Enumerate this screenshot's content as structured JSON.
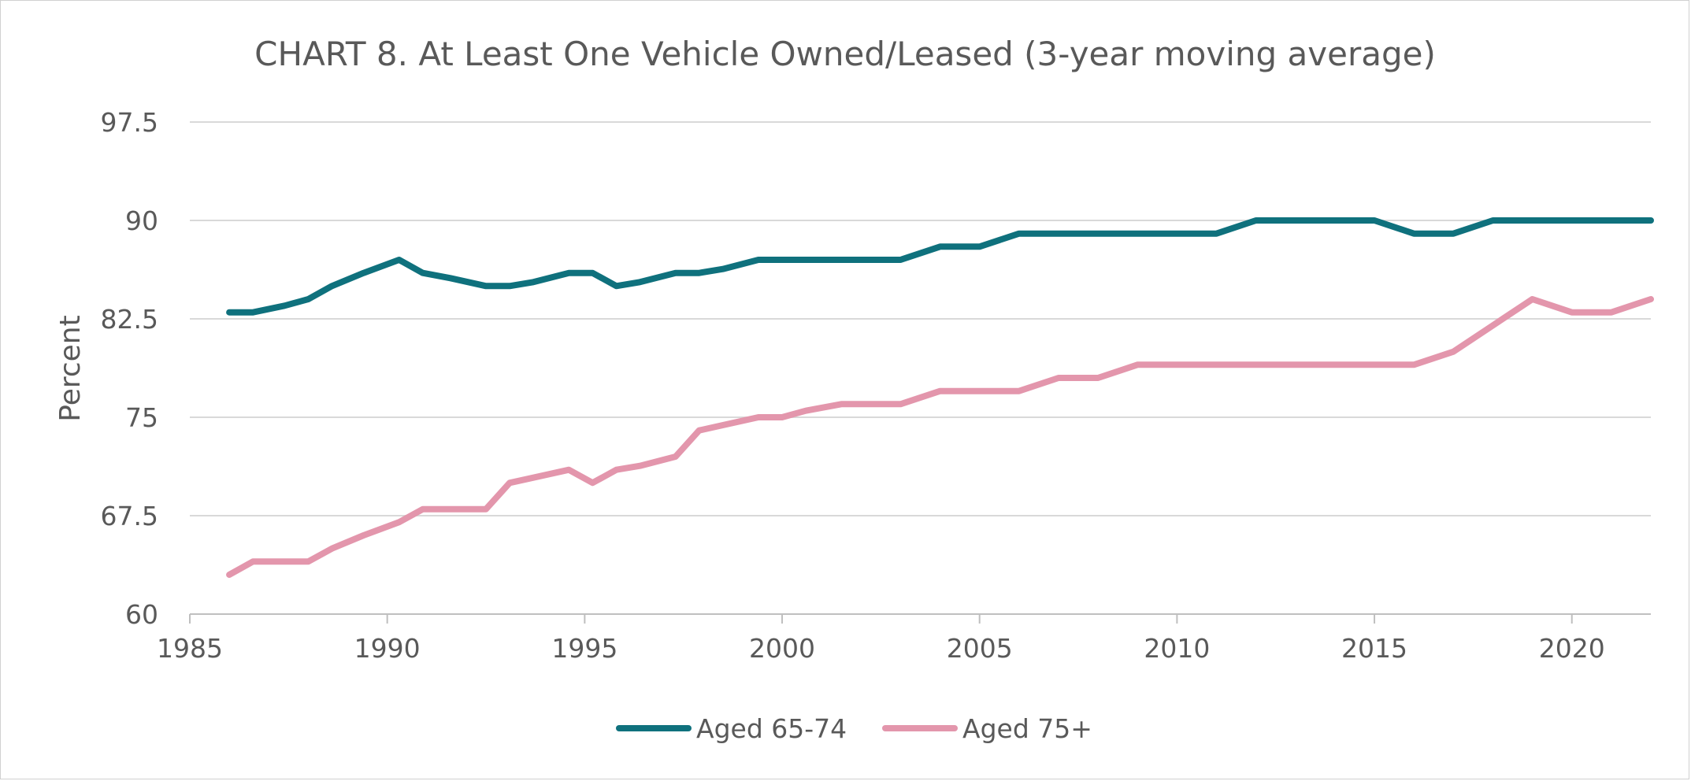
{
  "chart_data": {
    "type": "line",
    "title": "CHART 8. At Least One Vehicle Owned/Leased (3-year moving average)",
    "xlabel": "",
    "ylabel": "Percent",
    "xlim": [
      1985,
      2022
    ],
    "ylim": [
      60,
      97.5
    ],
    "xticks": [
      "1985",
      "1990",
      "1995",
      "2000",
      "2005",
      "2010",
      "2015",
      "2020"
    ],
    "yticks": [
      "60",
      "67.5",
      "75",
      "82.5",
      "90",
      "97.5"
    ],
    "grid": true,
    "legend_position": "bottom",
    "series": [
      {
        "name": "Aged 65-74",
        "color": "#0f717d",
        "x": [
          1986,
          1986.6,
          1987.4,
          1988,
          1988.6,
          1989.4,
          1990.3,
          1990.9,
          1991.6,
          1992.5,
          1993.1,
          1993.7,
          1994.6,
          1995.2,
          1995.8,
          1996.4,
          1997.3,
          1997.9,
          1998.5,
          1999.4,
          2000,
          2000.6,
          2001.5,
          2002.1,
          2003,
          2004,
          2005,
          2006,
          2007,
          2008,
          2009,
          2010,
          2011,
          2012,
          2013,
          2014,
          2015,
          2016,
          2017,
          2018,
          2019,
          2020,
          2021,
          2022
        ],
        "y": [
          83,
          83,
          83.5,
          84,
          85,
          86,
          87,
          86,
          85.6,
          85,
          85,
          85.3,
          86,
          86,
          85,
          85.3,
          86,
          86,
          86.3,
          87,
          87,
          87,
          87,
          87,
          87,
          88,
          88,
          89,
          89,
          89,
          89,
          89,
          89,
          90,
          90,
          90,
          90,
          89,
          89,
          90,
          90,
          90,
          90,
          90
        ]
      },
      {
        "name": "Aged 75+",
        "color": "#e396ac",
        "x": [
          1986,
          1986.6,
          1987.4,
          1988,
          1988.6,
          1989.4,
          1990.3,
          1990.9,
          1991.6,
          1992.5,
          1993.1,
          1993.7,
          1994.6,
          1995.2,
          1995.8,
          1996.4,
          1997.3,
          1997.9,
          1998.5,
          1999.4,
          2000,
          2000.6,
          2001.5,
          2002.1,
          2003,
          2004,
          2005,
          2006,
          2007,
          2008,
          2009,
          2010,
          2011,
          2012,
          2013,
          2014,
          2015,
          2016,
          2017,
          2018,
          2019,
          2020,
          2021,
          2022
        ],
        "y": [
          63,
          64,
          64,
          64,
          65,
          66,
          67,
          68,
          68,
          68,
          70,
          70.4,
          71,
          70,
          71,
          71.3,
          72,
          74,
          74.4,
          75,
          75,
          75.5,
          76,
          76,
          76,
          77,
          77,
          77,
          78,
          78,
          79,
          79,
          79,
          79,
          79,
          79,
          79,
          79,
          80,
          82,
          84,
          83,
          83,
          84
        ]
      }
    ]
  }
}
